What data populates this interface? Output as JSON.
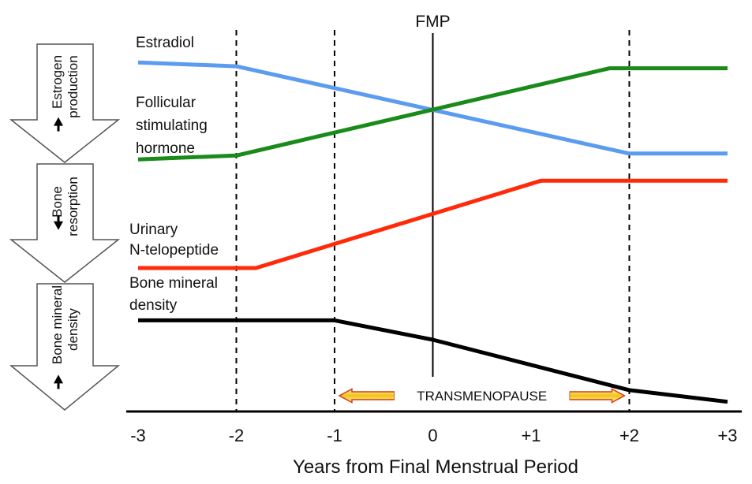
{
  "chart_data": {
    "type": "line",
    "title": "",
    "xlabel": "Years from Final Menstrual Period",
    "ylabel": "",
    "xlim": [
      -3,
      3
    ],
    "x_ticks": [
      -3,
      -2,
      -1,
      0,
      1,
      2,
      3
    ],
    "x_tick_labels": [
      "-3",
      "-2",
      "-1",
      "0",
      "+1",
      "+2",
      "+3"
    ],
    "ylim": [
      0,
      100
    ],
    "grid": false,
    "reference_lines": [
      {
        "name": "dashed-line-minus2",
        "x": -2,
        "style": "dashed"
      },
      {
        "name": "dashed-line-minus1",
        "x": -1,
        "style": "dashed"
      },
      {
        "name": "fmp-line",
        "x": 0,
        "style": "solid",
        "label": "FMP"
      },
      {
        "name": "dashed-line-plus2",
        "x": 2,
        "style": "dashed"
      }
    ],
    "series": [
      {
        "name": "Estradiol",
        "key": "estradiol",
        "color": "#5b9bf0",
        "points": [
          [
            -3,
            90
          ],
          [
            -2,
            89
          ],
          [
            2,
            66.5
          ],
          [
            3,
            66.5
          ]
        ]
      },
      {
        "name": "Follicular stimulating hormone",
        "key": "fsh",
        "color": "#1a8a1a",
        "points": [
          [
            -3,
            65
          ],
          [
            -2,
            66
          ],
          [
            1.8,
            88.5
          ],
          [
            3,
            88.5
          ]
        ]
      },
      {
        "name": "Urinary N-telopeptide",
        "key": "ntx",
        "color": "#ff2a0a",
        "points": [
          [
            -3,
            37
          ],
          [
            -1.8,
            37
          ],
          [
            1.1,
            59.5
          ],
          [
            3,
            59.5
          ]
        ]
      },
      {
        "name": "Bone mineral density",
        "key": "bmd",
        "color": "#000000",
        "points": [
          [
            -3,
            23.5
          ],
          [
            -1,
            23.5
          ],
          [
            0,
            18.5
          ],
          [
            2,
            5.5
          ],
          [
            3,
            2.5
          ]
        ]
      }
    ],
    "series_labels": {
      "estradiol": [
        "Estradiol"
      ],
      "fsh": [
        "Follicular",
        "stimulating",
        "hormone"
      ],
      "ntx": [
        "Urinary",
        "N-telopeptide"
      ],
      "bmd": [
        "Bone mineral",
        "density"
      ]
    },
    "annotations": {
      "fmp": "FMP",
      "transmenopause": {
        "text": "TRANSMENOPAUSE",
        "x_start": -1,
        "x_end": 2
      }
    },
    "side_arrows": [
      {
        "name": "estrogen-production",
        "direction": "down",
        "lines": [
          "Estrogen",
          "production"
        ]
      },
      {
        "name": "bone-resorption",
        "direction": "up",
        "lines": [
          "Bone",
          "resorption"
        ]
      },
      {
        "name": "bone-mineral-density",
        "direction": "down",
        "lines": [
          "Bone mineral",
          "density"
        ]
      }
    ]
  }
}
